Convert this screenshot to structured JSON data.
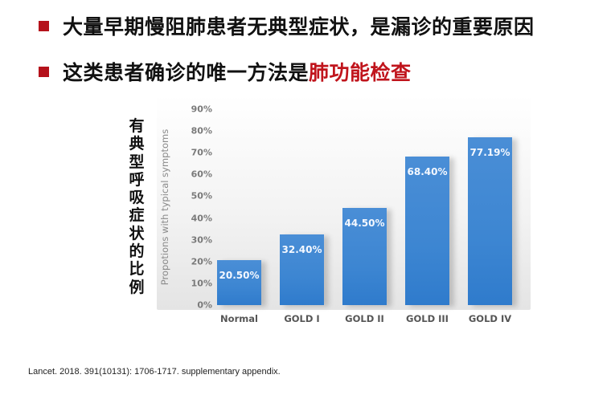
{
  "slide": {
    "bullets": [
      {
        "text": "大量早期慢阻肺患者无典型症状，是漏诊的重要原因",
        "highlight": ""
      },
      {
        "text": "这类患者确诊的唯一方法是",
        "highlight": "肺功能检查"
      }
    ],
    "colors": {
      "bullet": "#b5121b",
      "highlight": "#c0141c",
      "bar": "#3d86d2"
    },
    "citation": "Lancet. 2018. 391(10131): 1706-1717. supplementary appendix."
  },
  "chart_data": {
    "type": "bar",
    "title": "",
    "categories": [
      "Normal",
      "GOLD I",
      "GOLD II",
      "GOLD III",
      "GOLD IV"
    ],
    "values": [
      20.5,
      32.4,
      44.5,
      68.4,
      77.19
    ],
    "value_labels": [
      "20.50%",
      "32.40%",
      "44.50%",
      "68.40%",
      "77.19%"
    ],
    "xlabel": "",
    "ylabel": "Propotions with typical symptoms",
    "ylabel_cn": "有典型呼吸症状的比例",
    "ylim": [
      0,
      90
    ],
    "yticks": [
      "0%",
      "10%",
      "20%",
      "30%",
      "40%",
      "50%",
      "60%",
      "70%",
      "80%",
      "90%"
    ],
    "grid": false,
    "legend": null
  }
}
